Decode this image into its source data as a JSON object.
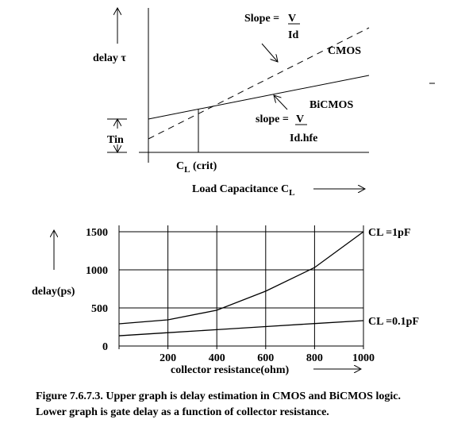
{
  "upper_graph": {
    "y_label": "delay τ",
    "cmos_slope": {
      "label": "Slope =",
      "numerator": "V",
      "denominator": "Id"
    },
    "cmos_label": "CMOS",
    "bicmos_label": "BiCMOS",
    "bicmos_slope": {
      "label": "slope =",
      "numerator": "V",
      "denominator": "Id.hfe"
    },
    "intercept_label": "Tin",
    "crossover_label": {
      "main": "C",
      "sub": "L",
      "suffix": " (crit)"
    },
    "x_label": {
      "main": "Load Capacitance C",
      "sub": "L"
    }
  },
  "chart_data": {
    "type": "line",
    "x_label": "collector resistance(ohm)",
    "y_label": "delay(ps)",
    "x": [
      0,
      200,
      400,
      600,
      800,
      1000
    ],
    "series": [
      {
        "name": "CL =1pF",
        "color": "#000000",
        "values": [
          292,
          344,
          470,
          720,
          1030,
          1500
        ]
      },
      {
        "name": "CL =0.1pF",
        "color": "#000000",
        "values": [
          135,
          175,
          215,
          255,
          295,
          333
        ]
      }
    ],
    "xlim": [
      0,
      1000
    ],
    "xticks": [
      200,
      400,
      600,
      800,
      1000
    ],
    "ylim": [
      0,
      1500
    ],
    "yticks": [
      0,
      500,
      1000,
      1500
    ],
    "grid": true
  },
  "caption": [
    "Figure 7.6.7.3. Upper graph is delay estimation in CMOS and BiCMOS logic.",
    "Lower graph is gate delay as a function of collector resistance."
  ]
}
